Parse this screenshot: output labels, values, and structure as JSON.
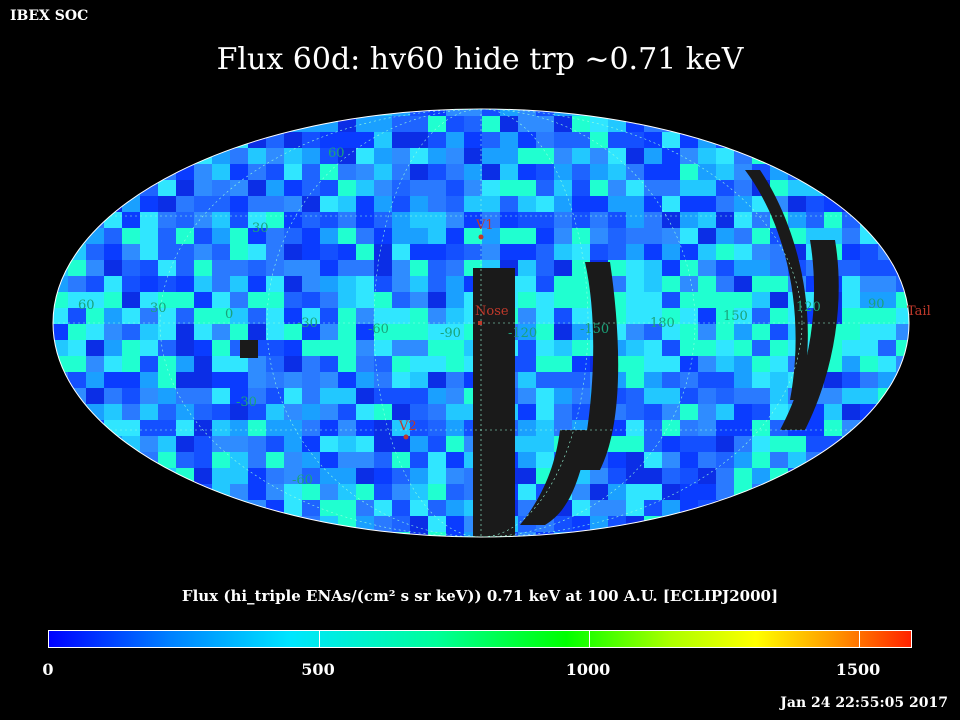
{
  "corner_label": "IBEX SOC",
  "title": "Flux   60d: hv60 hide trp ~0.71 keV",
  "colorbar": {
    "title": "Flux (hi_triple ENAs/(cm² s sr keV))  0.71 keV at 100 A.U. [ECLIPJ2000]",
    "ticks": [
      "0",
      "500",
      "1000",
      "1500"
    ],
    "range": [
      0,
      1600
    ]
  },
  "timestamp": "Jan 24 22:55:05 2017",
  "map": {
    "lat_labels": [
      "60",
      "30",
      "-30",
      "-60"
    ],
    "lon_labels": [
      "60",
      "30",
      "0",
      "-30",
      "-60",
      "-90",
      "-120",
      "-150",
      "180",
      "150",
      "120",
      "90"
    ],
    "markers": {
      "nose": "Nose",
      "tail": "Tail",
      "v1": "V1",
      "v2": "V2"
    },
    "colors": {
      "background": "#000000",
      "low": "#0000ff",
      "mid": "#00e6ff",
      "high": "#ff2200",
      "gap": "#1a1a1a"
    }
  }
}
